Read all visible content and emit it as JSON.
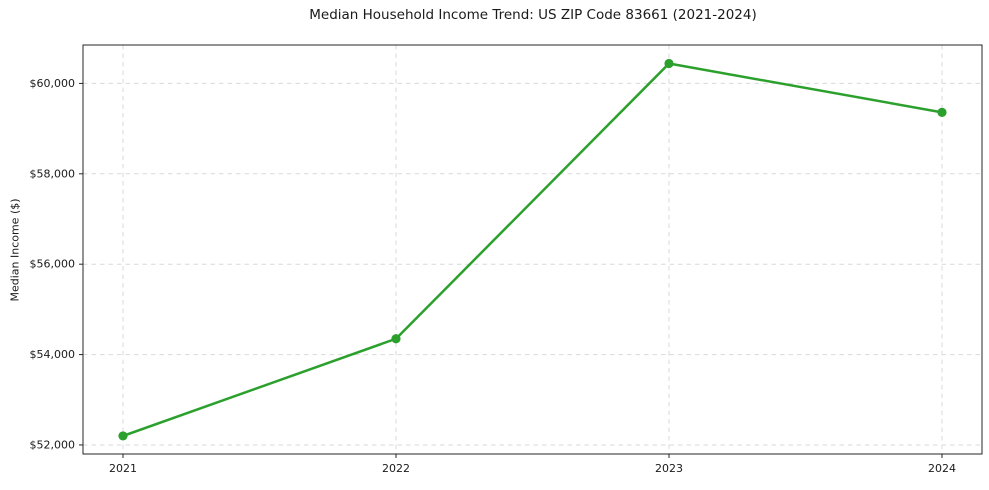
{
  "chart_data": {
    "type": "line",
    "title": "Median Household Income Trend: US ZIP Code 83661 (2021-2024)",
    "xlabel": "",
    "ylabel": "Median Income ($)",
    "categories": [
      "2021",
      "2022",
      "2023",
      "2024"
    ],
    "series": [
      {
        "values": [
          52200,
          54350,
          60440,
          59360
        ],
        "color": "#2ca02c",
        "marker": "circle"
      }
    ],
    "ylim": [
      51800,
      60850
    ],
    "yticks": [
      52000,
      54000,
      56000,
      58000,
      60000
    ],
    "ytick_prefix": "$",
    "grid": true,
    "grid_linestyle": "dashed",
    "legend_position": "none",
    "colors": {
      "background": "#ffffff",
      "grid": "#d9d9d9",
      "axis": "#262626",
      "text": "#1a1a1a"
    }
  }
}
